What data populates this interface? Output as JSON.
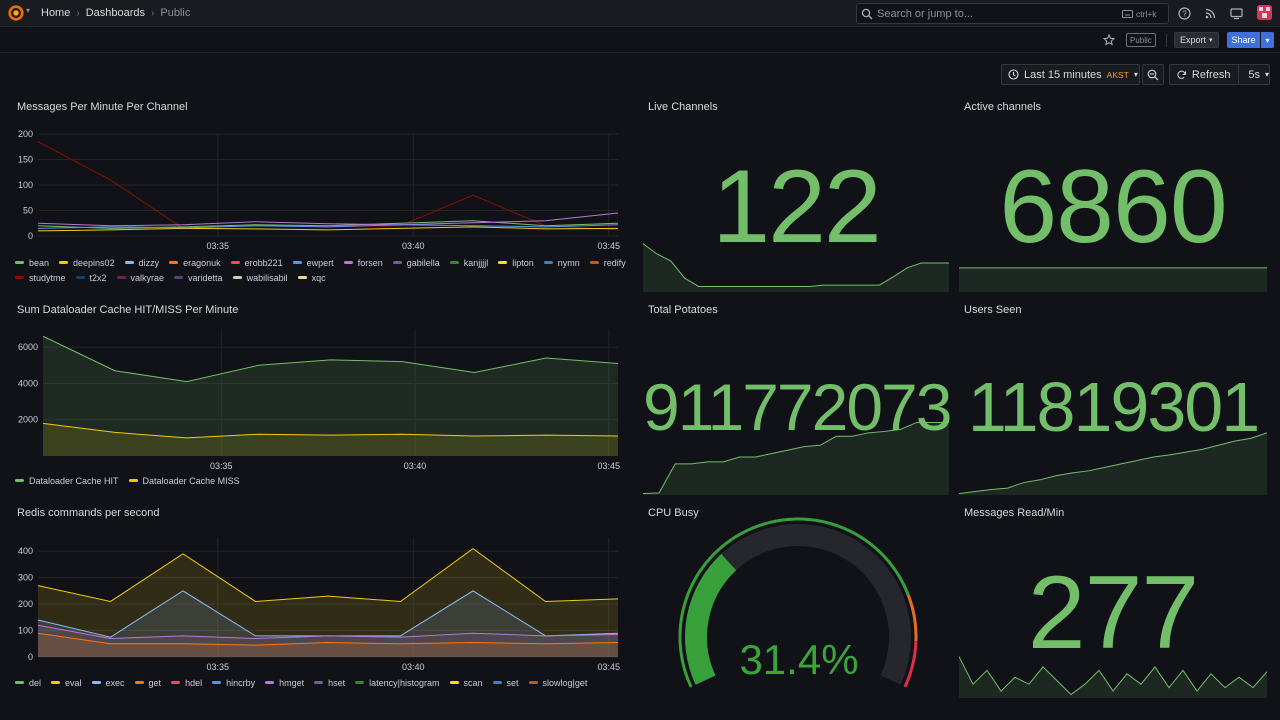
{
  "topbar": {
    "breadcrumbs": [
      "Home",
      "Dashboards",
      "Public"
    ],
    "search_placeholder": "Search or jump to...",
    "search_shortcut": "ctrl+k",
    "icons": [
      "grafana-logo-icon",
      "help-icon",
      "news-icon",
      "kiosk-icon",
      "user-avatar"
    ]
  },
  "toolbar": {
    "public_tag": "Public",
    "export_label": "Export",
    "share_label": "Share"
  },
  "time": {
    "range_label": "Last 15 minutes",
    "timezone": "AKST",
    "refresh_label": "Refresh",
    "interval": "5s"
  },
  "colors": {
    "accent_green": "#73bf69",
    "background": "#111217",
    "share_blue": "#3d71d9",
    "timezone_orange": "#ff9830"
  },
  "panels": {
    "messages": {
      "title": "Messages Per Minute Per Channel",
      "yticks": [
        "200",
        "150",
        "100",
        "50",
        "0"
      ],
      "xticks": [
        "03:35",
        "03:40",
        "03:45"
      ],
      "legend": [
        {
          "name": "bean",
          "color": "#73bf69"
        },
        {
          "name": "deepins02",
          "color": "#f2cc0c"
        },
        {
          "name": "dizzy",
          "color": "#8ab8ff"
        },
        {
          "name": "eragonuk",
          "color": "#ff780a"
        },
        {
          "name": "erobb221",
          "color": "#f2495c"
        },
        {
          "name": "ewpert",
          "color": "#5794f2"
        },
        {
          "name": "forsen",
          "color": "#b877d9"
        },
        {
          "name": "gabilella",
          "color": "#705da0"
        },
        {
          "name": "kanjjjjl",
          "color": "#37872d"
        },
        {
          "name": "lipton",
          "color": "#fade2a"
        },
        {
          "name": "nymn",
          "color": "#447ebc"
        },
        {
          "name": "redify",
          "color": "#c15c17"
        },
        {
          "name": "studytme",
          "color": "#890f02"
        },
        {
          "name": "t2x2",
          "color": "#0a437c"
        },
        {
          "name": "valkyrae",
          "color": "#6d1f62"
        },
        {
          "name": "varidetta",
          "color": "#584477"
        },
        {
          "name": "wabilisabil",
          "color": "#b7dbab"
        },
        {
          "name": "xqc",
          "color": "#f4d598"
        }
      ]
    },
    "dataloader": {
      "title": "Sum Dataloader Cache HIT/MISS Per Minute",
      "yticks": [
        "6000",
        "4000",
        "2000"
      ],
      "xticks": [
        "03:35",
        "03:40",
        "03:45"
      ],
      "legend": [
        {
          "name": "Dataloader Cache HIT",
          "color": "#73bf69"
        },
        {
          "name": "Dataloader Cache MISS",
          "color": "#f2cc0c"
        }
      ]
    },
    "redis": {
      "title": "Redis commands per second",
      "yticks": [
        "400",
        "300",
        "200",
        "100",
        "0"
      ],
      "xticks": [
        "03:35",
        "03:40",
        "03:45"
      ],
      "legend": [
        {
          "name": "del",
          "color": "#73bf69"
        },
        {
          "name": "eval",
          "color": "#f2cc0c"
        },
        {
          "name": "exec",
          "color": "#8ab8ff"
        },
        {
          "name": "get",
          "color": "#ff780a"
        },
        {
          "name": "hdel",
          "color": "#f2495c"
        },
        {
          "name": "hincrby",
          "color": "#5794f2"
        },
        {
          "name": "hmget",
          "color": "#b877d9"
        },
        {
          "name": "hset",
          "color": "#705da0"
        },
        {
          "name": "latency|histogram",
          "color": "#37872d"
        },
        {
          "name": "scan",
          "color": "#fade2a"
        },
        {
          "name": "set",
          "color": "#447ebc"
        },
        {
          "name": "slowlog|get",
          "color": "#c15c17"
        }
      ]
    },
    "live_channels": {
      "title": "Live Channels",
      "value": "122"
    },
    "active_channels": {
      "title": "Active channels",
      "value": "6860"
    },
    "total_potatoes": {
      "title": "Total Potatoes",
      "value": "911772073"
    },
    "users_seen": {
      "title": "Users Seen",
      "value": "11819301"
    },
    "cpu_busy": {
      "title": "CPU Busy",
      "value": "31.4%",
      "percent": 31.4
    },
    "messages_read": {
      "title": "Messages Read/Min",
      "value": "277"
    }
  },
  "chart_data": [
    {
      "type": "line",
      "title": "Messages Per Minute Per Channel",
      "x": [
        "03:31",
        "03:33",
        "03:35",
        "03:37",
        "03:39",
        "03:41",
        "03:43",
        "03:45",
        "03:46"
      ],
      "ylim": [
        0,
        200
      ],
      "series": [
        {
          "name": "studytme",
          "values": [
            185,
            110,
            15,
            22,
            18,
            20,
            80,
            20,
            12
          ]
        },
        {
          "name": "bean",
          "values": [
            20,
            15,
            18,
            22,
            20,
            25,
            30,
            20,
            25
          ]
        },
        {
          "name": "forsen",
          "values": [
            25,
            20,
            22,
            28,
            24,
            22,
            26,
            30,
            45
          ]
        },
        {
          "name": "deepins02",
          "values": [
            10,
            12,
            15,
            14,
            12,
            15,
            18,
            14,
            15
          ]
        },
        {
          "name": "ewpert",
          "values": [
            15,
            18,
            16,
            20,
            18,
            22,
            20,
            18,
            22
          ]
        }
      ]
    },
    {
      "type": "area",
      "title": "Sum Dataloader Cache HIT/MISS Per Minute",
      "x": [
        "03:31",
        "03:33",
        "03:35",
        "03:37",
        "03:39",
        "03:41",
        "03:43",
        "03:45",
        "03:46"
      ],
      "ylim": [
        0,
        7000
      ],
      "series": [
        {
          "name": "Dataloader Cache HIT",
          "values": [
            6600,
            4700,
            4100,
            5000,
            5300,
            5200,
            4600,
            5400,
            5100
          ]
        },
        {
          "name": "Dataloader Cache MISS",
          "values": [
            1800,
            1300,
            1000,
            1200,
            1150,
            1200,
            1100,
            1150,
            1100
          ]
        }
      ]
    },
    {
      "type": "area",
      "title": "Redis commands per second",
      "x": [
        "03:31",
        "03:33",
        "03:35",
        "03:37",
        "03:39",
        "03:41",
        "03:43",
        "03:45",
        "03:46"
      ],
      "ylim": [
        0,
        450
      ],
      "series": [
        {
          "name": "eval",
          "values": [
            270,
            210,
            390,
            210,
            230,
            210,
            410,
            210,
            220
          ]
        },
        {
          "name": "exec",
          "values": [
            140,
            75,
            250,
            80,
            80,
            80,
            250,
            80,
            90
          ]
        },
        {
          "name": "hmget",
          "values": [
            120,
            70,
            80,
            70,
            80,
            75,
            90,
            80,
            85
          ]
        },
        {
          "name": "get",
          "values": [
            90,
            50,
            50,
            45,
            55,
            50,
            55,
            50,
            55
          ]
        }
      ]
    },
    {
      "type": "area",
      "title": "Live Channels",
      "values": [
        70,
        55,
        45,
        20,
        8,
        8,
        8,
        8,
        8,
        8,
        8,
        8,
        8,
        10,
        10,
        10,
        10,
        10,
        22,
        35,
        42,
        42,
        42
      ]
    },
    {
      "type": "area",
      "title": "Active channels",
      "values": [
        35,
        35,
        35,
        35,
        35,
        35,
        35,
        35,
        35,
        35
      ]
    },
    {
      "type": "area",
      "title": "Total Potatoes",
      "values": [
        2,
        3,
        45,
        45,
        48,
        48,
        55,
        55,
        60,
        65,
        70,
        72,
        85,
        85,
        90,
        92,
        95,
        105,
        105,
        105
      ]
    },
    {
      "type": "area",
      "title": "Users Seen",
      "values": [
        2,
        5,
        8,
        10,
        18,
        22,
        28,
        32,
        35,
        40,
        45,
        50,
        55,
        58,
        62,
        66,
        72,
        78,
        82,
        90
      ]
    },
    {
      "type": "area",
      "title": "Messages Read/Min",
      "values": [
        60,
        20,
        40,
        10,
        30,
        20,
        45,
        25,
        5,
        20,
        40,
        10,
        35,
        20,
        45,
        15,
        40,
        10,
        35,
        15,
        30,
        15,
        38
      ]
    }
  ]
}
